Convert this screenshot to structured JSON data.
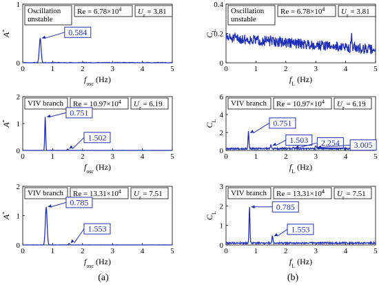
{
  "colors": {
    "series": "#1f2fb5",
    "annotation": "#1f2fb5",
    "axis": "#000000"
  },
  "panel_labels": [
    "(a)",
    "(b)"
  ],
  "chart_data": [
    {
      "id": "a1",
      "type": "line",
      "title_box": [
        "Oscillation",
        "unstable"
      ],
      "params": {
        "re": "Re = 6.78×10",
        "re_exp": "4",
        "ur_var": "U",
        "ur_sub": "r",
        "ur_val": " = 3.81"
      },
      "ylabel": {
        "var": "A",
        "sup": "*"
      },
      "xlabel": {
        "var": "f",
        "sub": "osc",
        "unit": " (Hz)"
      },
      "xlim": [
        0,
        5
      ],
      "xticks": [
        0,
        1,
        2,
        3,
        4,
        5
      ],
      "ylim": [
        0,
        1
      ],
      "yticks": [
        0,
        1
      ],
      "noise": 0.008,
      "seed": 11,
      "peaks": [
        {
          "f": 0.584,
          "a": 0.42,
          "w": 0.03
        }
      ],
      "base": {
        "f": 0.0,
        "a": 0.0
      },
      "annotations": [
        {
          "label": "0.584",
          "x": 0.584,
          "y": 0.42,
          "tx": 1.4,
          "ty": 0.52
        }
      ]
    },
    {
      "id": "a2",
      "type": "line",
      "title_box": [
        "VIV branch"
      ],
      "params": {
        "re": "Re = 10.97×10",
        "re_exp": "4",
        "ur_var": "U",
        "ur_sub": "r",
        "ur_val": " = 6.19"
      },
      "ylabel": {
        "var": "A",
        "sup": "*"
      },
      "xlabel": {
        "var": "f",
        "sub": "osc",
        "unit": " (Hz)"
      },
      "xlim": [
        0,
        5
      ],
      "xticks": [
        0,
        1,
        2,
        3,
        4,
        5
      ],
      "ylim": [
        0,
        2
      ],
      "yticks": [
        0,
        1,
        2
      ],
      "noise": 0.006,
      "seed": 23,
      "peaks": [
        {
          "f": 0.751,
          "a": 1.25,
          "w": 0.015
        },
        {
          "f": 1.502,
          "a": 0.05,
          "w": 0.02
        }
      ],
      "base": {
        "f": 0.0,
        "a": 0.0
      },
      "annotations": [
        {
          "label": "0.751",
          "x": 0.751,
          "y": 1.25,
          "tx": 1.45,
          "ty": 1.4
        },
        {
          "label": "1.502",
          "x": 1.502,
          "y": 0.06,
          "tx": 2.05,
          "ty": 0.48
        }
      ]
    },
    {
      "id": "a3",
      "type": "line",
      "title_box": [
        "VIV branch"
      ],
      "params": {
        "re": "Re = 13.31×10",
        "re_exp": "4",
        "ur_var": "U",
        "ur_sub": "r",
        "ur_val": " = 7.51"
      },
      "ylabel": {
        "var": "A",
        "sup": "*"
      },
      "xlabel": {
        "var": "f",
        "sub": "osc",
        "unit": " (Hz)"
      },
      "xlim": [
        0,
        5
      ],
      "xticks": [
        0,
        1,
        2,
        3,
        4,
        5
      ],
      "ylim": [
        0,
        2
      ],
      "yticks": [
        0,
        1,
        2
      ],
      "noise": 0.006,
      "seed": 37,
      "peaks": [
        {
          "f": 0.785,
          "a": 1.3,
          "w": 0.03
        },
        {
          "f": 1.553,
          "a": 0.05,
          "w": 0.02
        }
      ],
      "base": {
        "f": 0.0,
        "a": 0.0
      },
      "annotations": [
        {
          "label": "0.785",
          "x": 0.785,
          "y": 1.3,
          "tx": 1.45,
          "ty": 1.45
        },
        {
          "label": "1.553",
          "x": 1.553,
          "y": 0.06,
          "tx": 2.05,
          "ty": 0.55
        }
      ]
    },
    {
      "id": "b1",
      "type": "line",
      "title_box": [
        "Oscillation",
        "unstable"
      ],
      "params": {
        "re": "Re = 6.78×10",
        "re_exp": "4",
        "ur_var": "U",
        "ur_sub": "r",
        "ur_val": " = 3.81"
      },
      "ylabel": {
        "var": "C",
        "sub": "L"
      },
      "xlabel": {
        "var": "f",
        "sub": "L",
        "unit": " (Hz)"
      },
      "xlim": [
        0,
        5
      ],
      "xticks": [
        0,
        1,
        2,
        3,
        4,
        5
      ],
      "ylim": [
        0,
        0.4
      ],
      "yticks": [
        0,
        0.2,
        0.4
      ],
      "noise": 0.035,
      "seed": 51,
      "peaks": [
        {
          "f": 4.2,
          "a": 0.07,
          "w": 0.02
        }
      ],
      "base": {
        "f": 0.0,
        "a": 0.17
      },
      "decay": 0.08,
      "annotations": []
    },
    {
      "id": "b2",
      "type": "line",
      "title_box": [
        "VIV branch"
      ],
      "params": {
        "re": "Re = 10.97×10",
        "re_exp": "4",
        "ur_var": "U",
        "ur_sub": "r",
        "ur_val": " = 6.19"
      },
      "ylabel": {
        "var": "C",
        "sub": "L"
      },
      "xlabel": {
        "var": "f",
        "sub": "L",
        "unit": " (Hz)"
      },
      "xlim": [
        0,
        5
      ],
      "xticks": [
        0,
        1,
        2,
        3,
        4,
        5
      ],
      "ylim": [
        0,
        6
      ],
      "yticks": [
        0,
        2,
        4,
        6
      ],
      "noise": 0.08,
      "seed": 67,
      "peaks": [
        {
          "f": 0.751,
          "a": 1.95,
          "w": 0.015
        },
        {
          "f": 1.503,
          "a": 0.5,
          "w": 0.015
        },
        {
          "f": 2.254,
          "a": 0.15,
          "w": 0.015
        },
        {
          "f": 3.005,
          "a": 0.35,
          "w": 0.015
        }
      ],
      "base": {
        "f": 0.0,
        "a": 0.2
      },
      "annotations": [
        {
          "label": "0.751",
          "x": 0.751,
          "y": 1.95,
          "tx": 1.45,
          "ty": 3.05
        },
        {
          "label": "1.503",
          "x": 1.503,
          "y": 0.55,
          "tx": 2.0,
          "ty": 1.15
        },
        {
          "label": "2.254",
          "x": 2.254,
          "y": 0.3,
          "tx": 3.05,
          "ty": 0.85
        },
        {
          "label": "3.005",
          "x": 3.005,
          "y": 0.35,
          "tx": 4.15,
          "ty": 0.6
        }
      ]
    },
    {
      "id": "b3",
      "type": "line",
      "title_box": [
        "VIV branch"
      ],
      "params": {
        "re": "Re = 13.31×10",
        "re_exp": "4",
        "ur_var": "U",
        "ur_sub": "r",
        "ur_val": " = 7.51"
      },
      "ylabel": {
        "var": "C",
        "sub": "L"
      },
      "xlabel": {
        "var": "f",
        "sub": "L",
        "unit": " (Hz)"
      },
      "xlim": [
        0,
        5
      ],
      "xticks": [
        0,
        1,
        2,
        3,
        4,
        5
      ],
      "ylim": [
        0,
        3
      ],
      "yticks": [
        0,
        1,
        2,
        3
      ],
      "noise": 0.04,
      "seed": 79,
      "peaks": [
        {
          "f": 0.785,
          "a": 1.85,
          "w": 0.015
        },
        {
          "f": 1.553,
          "a": 0.4,
          "w": 0.015
        }
      ],
      "base": {
        "f": 0.0,
        "a": 0.1
      },
      "annotations": [
        {
          "label": "0.785",
          "x": 0.785,
          "y": 1.95,
          "tx": 1.55,
          "ty": 1.95
        },
        {
          "label": "1.553",
          "x": 1.553,
          "y": 0.45,
          "tx": 2.05,
          "ty": 0.8
        }
      ]
    }
  ]
}
